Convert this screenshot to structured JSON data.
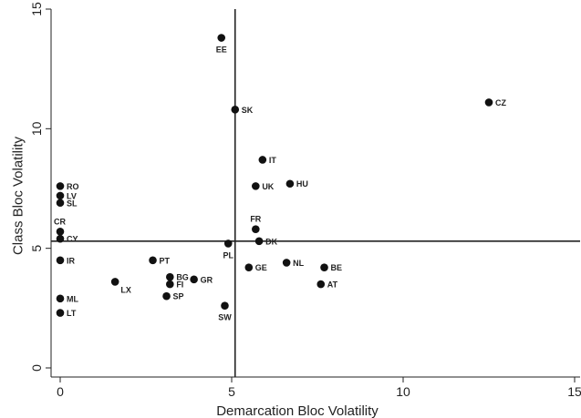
{
  "chart_data": {
    "type": "scatter",
    "xlabel": "Demarcation Bloc Volatility",
    "ylabel": "Class Bloc Volatility",
    "xlim": [
      0,
      15
    ],
    "ylim": [
      0,
      15
    ],
    "xticks": [
      0,
      5,
      10,
      15
    ],
    "yticks": [
      0,
      5,
      10,
      15
    ],
    "reference_lines": {
      "x": 5.1,
      "y": 5.3
    },
    "grid": false,
    "legend": "none",
    "points": [
      {
        "label": "EE",
        "x": 4.7,
        "y": 13.8
      },
      {
        "label": "SK",
        "x": 5.1,
        "y": 10.8
      },
      {
        "label": "CZ",
        "x": 12.5,
        "y": 11.1
      },
      {
        "label": "IT",
        "x": 5.9,
        "y": 8.7
      },
      {
        "label": "UK",
        "x": 5.7,
        "y": 7.6
      },
      {
        "label": "HU",
        "x": 6.7,
        "y": 7.7
      },
      {
        "label": "RO",
        "x": 0.0,
        "y": 7.6
      },
      {
        "label": "LV",
        "x": 0.0,
        "y": 7.2
      },
      {
        "label": "SL",
        "x": 0.0,
        "y": 6.9
      },
      {
        "label": "CR",
        "x": 0.0,
        "y": 5.7
      },
      {
        "label": "CY",
        "x": 0.0,
        "y": 5.4
      },
      {
        "label": "FR",
        "x": 5.7,
        "y": 5.8
      },
      {
        "label": "DK",
        "x": 5.8,
        "y": 5.3
      },
      {
        "label": "PL",
        "x": 4.9,
        "y": 5.2
      },
      {
        "label": "IR",
        "x": 0.0,
        "y": 4.5
      },
      {
        "label": "PT",
        "x": 2.7,
        "y": 4.5
      },
      {
        "label": "GE",
        "x": 5.5,
        "y": 4.2
      },
      {
        "label": "NL",
        "x": 6.6,
        "y": 4.4
      },
      {
        "label": "BE",
        "x": 7.7,
        "y": 4.2
      },
      {
        "label": "BG",
        "x": 3.2,
        "y": 3.8
      },
      {
        "label": "GR",
        "x": 3.9,
        "y": 3.7
      },
      {
        "label": "FI",
        "x": 3.2,
        "y": 3.5
      },
      {
        "label": "LX",
        "x": 1.6,
        "y": 3.6
      },
      {
        "label": "AT",
        "x": 7.6,
        "y": 3.5
      },
      {
        "label": "SP",
        "x": 3.1,
        "y": 3.0
      },
      {
        "label": "ML",
        "x": 0.0,
        "y": 2.9
      },
      {
        "label": "SW",
        "x": 4.8,
        "y": 2.6
      },
      {
        "label": "LT",
        "x": 0.0,
        "y": 2.3
      }
    ]
  }
}
